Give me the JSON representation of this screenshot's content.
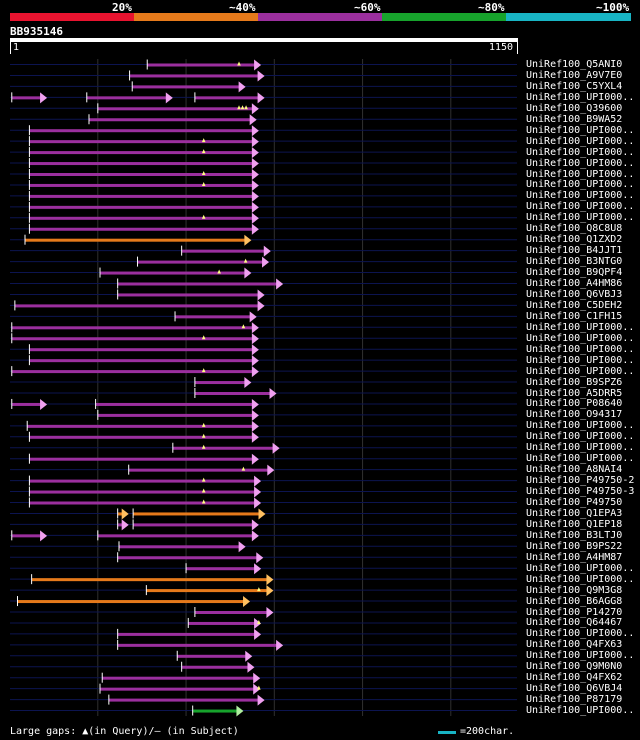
{
  "legend": {
    "items": [
      {
        "label": "20%",
        "color": "#e8132f"
      },
      {
        "label": "~40%",
        "color": "#e67a1b"
      },
      {
        "label": "~60%",
        "color": "#9b2f9e"
      },
      {
        "label": "~80%",
        "color": "#17a32c"
      },
      {
        "label": "~100%",
        "color": "#18b4c4"
      }
    ]
  },
  "query": {
    "name": "BB935146",
    "start_label": "1",
    "end_label": "1150",
    "length": 1150
  },
  "footer": {
    "gaps_text": "Large gaps: ▲(in Query)/– (in Subject)",
    "scale_text": "=200char."
  },
  "chart_data": {
    "type": "alignment",
    "title": "BB935146",
    "xlim": [
      1,
      1150
    ],
    "grid_x": [
      200,
      400,
      600,
      800,
      1000
    ],
    "colors": {
      "purple": "#9b2f9e",
      "orange": "#e67a1b",
      "green": "#17a32c",
      "arrow_purple": "#f0a0f0",
      "arrow_orange": "#ffc060",
      "arrow_green": "#b0f0a0"
    },
    "hits": [
      {
        "name": "UniRef100_Q5ANI0",
        "color": "purple",
        "segs": [
          [
            312,
            570
          ]
        ],
        "gaps": [
          520
        ]
      },
      {
        "name": "UniRef100_A9V7E0",
        "color": "purple",
        "segs": [
          [
            272,
            578
          ]
        ],
        "gaps": []
      },
      {
        "name": "UniRef100_C5YXL4",
        "color": "purple",
        "segs": [
          [
            278,
            535
          ]
        ],
        "gaps": []
      },
      {
        "name": "UniRef100_UPI000..",
        "color": "purple",
        "segs": [
          [
            5,
            85
          ],
          [
            175,
            370
          ],
          [
            420,
            578
          ]
        ],
        "gaps": []
      },
      {
        "name": "UniRef100_Q39600",
        "color": "purple",
        "segs": [
          [
            200,
            565
          ]
        ],
        "gaps": [
          520,
          528,
          536
        ]
      },
      {
        "name": "UniRef100_B9WA52",
        "color": "purple",
        "segs": [
          [
            180,
            560
          ]
        ],
        "gaps": []
      },
      {
        "name": "UniRef100_UPI000..",
        "color": "purple",
        "segs": [
          [
            45,
            565
          ]
        ],
        "gaps": []
      },
      {
        "name": "UniRef100_UPI000..",
        "color": "purple",
        "segs": [
          [
            45,
            565
          ]
        ],
        "gaps": [
          440
        ]
      },
      {
        "name": "UniRef100_UPI000..",
        "color": "purple",
        "segs": [
          [
            45,
            565
          ]
        ],
        "gaps": [
          440
        ]
      },
      {
        "name": "UniRef100_UPI000..",
        "color": "purple",
        "segs": [
          [
            45,
            565
          ]
        ],
        "gaps": []
      },
      {
        "name": "UniRef100_UPI000..",
        "color": "purple",
        "segs": [
          [
            45,
            565
          ]
        ],
        "gaps": [
          440
        ]
      },
      {
        "name": "UniRef100_UPI000..",
        "color": "purple",
        "segs": [
          [
            45,
            565
          ]
        ],
        "gaps": [
          440
        ]
      },
      {
        "name": "UniRef100_UPI000..",
        "color": "purple",
        "segs": [
          [
            45,
            565
          ]
        ],
        "gaps": []
      },
      {
        "name": "UniRef100_UPI000..",
        "color": "purple",
        "segs": [
          [
            45,
            565
          ]
        ],
        "gaps": []
      },
      {
        "name": "UniRef100_UPI000..",
        "color": "purple",
        "segs": [
          [
            45,
            565
          ]
        ],
        "gaps": [
          440
        ]
      },
      {
        "name": "UniRef100_Q8C8U8",
        "color": "purple",
        "segs": [
          [
            45,
            565
          ]
        ],
        "gaps": []
      },
      {
        "name": "UniRef100_Q1ZXD2",
        "color": "orange",
        "segs": [
          [
            35,
            548
          ]
        ],
        "gaps": []
      },
      {
        "name": "UniRef100_B4JJT1",
        "color": "purple",
        "segs": [
          [
            390,
            592
          ]
        ],
        "gaps": []
      },
      {
        "name": "UniRef100_B3NTG0",
        "color": "purple",
        "segs": [
          [
            290,
            588
          ]
        ],
        "gaps": [
          535
        ]
      },
      {
        "name": "UniRef100_B9QPF4",
        "color": "purple",
        "segs": [
          [
            205,
            548
          ]
        ],
        "gaps": [
          475
        ]
      },
      {
        "name": "UniRef100_A4HM86",
        "color": "purple",
        "segs": [
          [
            245,
            620
          ]
        ],
        "gaps": []
      },
      {
        "name": "UniRef100_Q6VBJ3",
        "color": "purple",
        "segs": [
          [
            245,
            578
          ]
        ],
        "gaps": []
      },
      {
        "name": "UniRef100_C5DEH2",
        "color": "purple",
        "segs": [
          [
            12,
            578
          ]
        ],
        "gaps": []
      },
      {
        "name": "UniRef100_C1FH15",
        "color": "purple",
        "segs": [
          [
            375,
            560
          ]
        ],
        "gaps": []
      },
      {
        "name": "UniRef100_UPI000..",
        "color": "purple",
        "segs": [
          [
            5,
            565
          ]
        ],
        "gaps": [
          530
        ]
      },
      {
        "name": "UniRef100_UPI000..",
        "color": "purple",
        "segs": [
          [
            5,
            565
          ]
        ],
        "gaps": [
          440
        ]
      },
      {
        "name": "UniRef100_UPI000..",
        "color": "purple",
        "segs": [
          [
            45,
            565
          ]
        ],
        "gaps": []
      },
      {
        "name": "UniRef100_UPI000..",
        "color": "purple",
        "segs": [
          [
            45,
            565
          ]
        ],
        "gaps": []
      },
      {
        "name": "UniRef100_UPI000..",
        "color": "purple",
        "segs": [
          [
            5,
            565
          ]
        ],
        "gaps": [
          440
        ]
      },
      {
        "name": "UniRef100_B9SPZ6",
        "color": "purple",
        "segs": [
          [
            420,
            548
          ]
        ],
        "gaps": []
      },
      {
        "name": "UniRef100_A5DRR5",
        "color": "purple",
        "segs": [
          [
            420,
            605
          ]
        ],
        "gaps": []
      },
      {
        "name": "UniRef100_P08640",
        "color": "purple",
        "segs": [
          [
            5,
            85
          ],
          [
            195,
            565
          ]
        ],
        "gaps": []
      },
      {
        "name": "UniRef100_O94317",
        "color": "purple",
        "segs": [
          [
            200,
            565
          ]
        ],
        "gaps": []
      },
      {
        "name": "UniRef100_UPI000..",
        "color": "purple",
        "segs": [
          [
            40,
            565
          ]
        ],
        "gaps": [
          440
        ]
      },
      {
        "name": "UniRef100_UPI000..",
        "color": "purple",
        "segs": [
          [
            45,
            565
          ]
        ],
        "gaps": [
          440
        ]
      },
      {
        "name": "UniRef100_UPI000..",
        "color": "purple",
        "segs": [
          [
            370,
            612
          ]
        ],
        "gaps": [
          440
        ]
      },
      {
        "name": "UniRef100_UPI000..",
        "color": "purple",
        "segs": [
          [
            45,
            565
          ]
        ],
        "gaps": []
      },
      {
        "name": "UniRef100_A8NAI4",
        "color": "purple",
        "segs": [
          [
            270,
            600
          ]
        ],
        "gaps": [
          530
        ]
      },
      {
        "name": "UniRef100_P49750-2",
        "color": "purple",
        "segs": [
          [
            45,
            570
          ]
        ],
        "gaps": [
          440
        ]
      },
      {
        "name": "UniRef100_P49750-3",
        "color": "purple",
        "segs": [
          [
            45,
            570
          ]
        ],
        "gaps": [
          440
        ]
      },
      {
        "name": "UniRef100_P49750",
        "color": "purple",
        "segs": [
          [
            45,
            570
          ]
        ],
        "gaps": [
          440
        ]
      },
      {
        "name": "UniRef100_Q1EPA3",
        "color": "orange",
        "segs": [
          [
            245,
            270
          ],
          [
            280,
            580
          ]
        ],
        "gaps": []
      },
      {
        "name": "UniRef100_Q1EP18",
        "color": "purple",
        "segs": [
          [
            245,
            270
          ],
          [
            280,
            565
          ]
        ],
        "gaps": []
      },
      {
        "name": "UniRef100_B3LTJ0",
        "color": "purple",
        "segs": [
          [
            5,
            85
          ],
          [
            200,
            565
          ]
        ],
        "gaps": []
      },
      {
        "name": "UniRef100_B9PS22",
        "color": "purple",
        "segs": [
          [
            248,
            535
          ]
        ],
        "gaps": []
      },
      {
        "name": "UniRef100_A4HM87",
        "color": "purple",
        "segs": [
          [
            245,
            575
          ]
        ],
        "gaps": []
      },
      {
        "name": "UniRef100_UPI000..",
        "color": "purple",
        "segs": [
          [
            400,
            570
          ]
        ],
        "gaps": []
      },
      {
        "name": "UniRef100_UPI000..",
        "color": "orange",
        "segs": [
          [
            50,
            598
          ]
        ],
        "gaps": []
      },
      {
        "name": "UniRef100_Q9M3G8",
        "color": "orange",
        "segs": [
          [
            310,
            598
          ]
        ],
        "gaps": [
          565
        ]
      },
      {
        "name": "UniRef100_B6AGG8",
        "color": "orange",
        "segs": [
          [
            18,
            545
          ]
        ],
        "gaps": []
      },
      {
        "name": "UniRef100_P14270",
        "color": "purple",
        "segs": [
          [
            420,
            598
          ]
        ],
        "gaps": []
      },
      {
        "name": "UniRef100_Q64467",
        "color": "purple",
        "segs": [
          [
            405,
            570
          ]
        ],
        "gaps": [
          565
        ]
      },
      {
        "name": "UniRef100_UPI000..",
        "color": "purple",
        "segs": [
          [
            245,
            570
          ]
        ],
        "gaps": []
      },
      {
        "name": "UniRef100_Q4FX63",
        "color": "purple",
        "segs": [
          [
            245,
            620
          ]
        ],
        "gaps": []
      },
      {
        "name": "UniRef100_UPI000..",
        "color": "purple",
        "segs": [
          [
            380,
            550
          ]
        ],
        "gaps": []
      },
      {
        "name": "UniRef100_Q9M0N0",
        "color": "purple",
        "segs": [
          [
            390,
            555
          ]
        ],
        "gaps": []
      },
      {
        "name": "UniRef100_Q4FX62",
        "color": "purple",
        "segs": [
          [
            210,
            568
          ]
        ],
        "gaps": []
      },
      {
        "name": "UniRef100_Q6VBJ4",
        "color": "purple",
        "segs": [
          [
            205,
            568
          ]
        ],
        "gaps": [
          565
        ]
      },
      {
        "name": "UniRef100_P87179",
        "color": "purple",
        "segs": [
          [
            225,
            578
          ]
        ],
        "gaps": []
      },
      {
        "name": "UniRef100_UPI000..",
        "color": "green",
        "segs": [
          [
            415,
            530
          ]
        ],
        "gaps": []
      }
    ]
  }
}
